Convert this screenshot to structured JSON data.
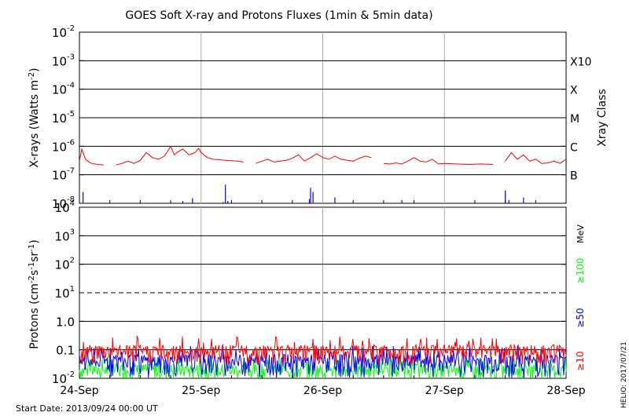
{
  "title": "GOES Soft X-ray and Protons Fluxes   (1min & 5min data)",
  "footer": {
    "start_date": "Start Date: 2013/09/24 00:00 UT",
    "credit": "HELIO: 2017/07/21"
  },
  "colors": {
    "xray_long": "#ff0000",
    "xray_short": "#0000ff",
    "proton_10": "#ff0000",
    "proton_50": "#0000ff",
    "proton_100": "#00ff00",
    "grid": "#000000",
    "day_line": "#aaaaaa"
  },
  "chart_data": [
    {
      "type": "line",
      "title": "GOES Soft X-ray and Protons Fluxes   (1min & 5min data)",
      "ylabel": "X-rays (Watts m^-2)",
      "y2label": "Xray Class",
      "yscale": "log",
      "ylim": [
        1e-08,
        0.01
      ],
      "xlim": [
        "2013-09-24",
        "2013-09-28"
      ],
      "x_ticks": [
        "24-Sep",
        "25-Sep",
        "26-Sep",
        "27-Sep",
        "28-Sep"
      ],
      "y_tick_exponents": [
        -8,
        -7,
        -6,
        -5,
        -4,
        -3,
        -2
      ],
      "xray_class_labels": [
        {
          "label": "B",
          "level": 1e-07
        },
        {
          "label": "C",
          "level": 1e-06
        },
        {
          "label": "M",
          "level": 1e-05
        },
        {
          "label": "X",
          "level": 0.0001
        },
        {
          "label": "X10",
          "level": 0.001
        }
      ],
      "grid_levels": [
        1e-07,
        1e-06,
        1e-05,
        0.0001,
        0.001
      ],
      "series": [
        {
          "color": "#ff0000",
          "x_days": [
            0.0,
            0.02,
            0.05,
            0.08,
            0.1,
            0.15,
            0.2,
            0.25,
            0.3,
            0.35,
            0.4,
            0.45,
            0.5,
            0.55,
            0.6,
            0.65,
            0.7,
            0.75,
            0.78,
            0.8,
            0.85,
            0.9,
            0.95,
            0.98,
            1.0,
            1.05,
            1.1,
            1.2,
            1.3,
            1.35,
            1.4,
            1.45,
            1.5,
            1.55,
            1.6,
            1.65,
            1.7,
            1.75,
            1.8,
            1.85,
            1.9,
            1.95,
            2.0,
            2.05,
            2.1,
            2.15,
            2.2,
            2.25,
            2.3,
            2.35,
            2.4,
            2.45,
            2.5,
            2.55,
            2.6,
            2.65,
            2.7,
            2.75,
            2.8,
            2.85,
            2.9,
            2.95,
            3.0,
            3.1,
            3.2,
            3.3,
            3.4,
            3.45,
            3.5,
            3.55,
            3.6,
            3.65,
            3.7,
            3.75,
            3.8,
            3.85,
            3.9,
            3.95,
            4.0
          ],
          "values": [
            3e-07,
            8e-07,
            3.5e-07,
            2.8e-07,
            2.5e-07,
            2.3e-07,
            2.2e-07,
            null,
            2.2e-07,
            2.5e-07,
            3e-07,
            2.5e-07,
            3.2e-07,
            6e-07,
            4e-07,
            3.5e-07,
            4.5e-07,
            1e-06,
            5e-07,
            6e-07,
            8e-07,
            5e-07,
            6e-07,
            8.5e-07,
            6e-07,
            4e-07,
            3.5e-07,
            3.2e-07,
            3e-07,
            2.8e-07,
            null,
            2.5e-07,
            3e-07,
            3.5e-07,
            2.8e-07,
            3e-07,
            3.2e-07,
            3.8e-07,
            5e-07,
            3e-07,
            4e-07,
            5.5e-07,
            4e-07,
            3.5e-07,
            4.5e-07,
            3.5e-07,
            3.2e-07,
            3e-07,
            3.8e-07,
            4.5e-07,
            4e-07,
            null,
            2.5e-07,
            2.4e-07,
            2.6e-07,
            2.4e-07,
            3e-07,
            4e-07,
            3e-07,
            2.8e-07,
            3.5e-07,
            2.4e-07,
            2.5e-07,
            2.4e-07,
            2.3e-07,
            2.4e-07,
            2.3e-07,
            null,
            3e-07,
            6e-07,
            3.5e-07,
            5e-07,
            3e-07,
            3.5e-07,
            2.5e-07,
            2.6e-07,
            3e-07,
            2.5e-07,
            3.5e-07
          ]
        },
        {
          "color": "#0000ff",
          "spike_days": [
            0.0,
            0.03,
            0.85,
            0.93,
            1.05,
            1.18,
            1.2,
            1.22,
            1.45,
            1.8,
            1.89,
            1.9,
            1.92,
            2.1,
            2.65,
            3.5,
            3.53,
            3.65
          ],
          "spike_values": [
            1e-08,
            2.5e-08,
            1.2e-08,
            1.5e-08,
            1e-08,
            1.1e-08,
            4.5e-08,
            1.2e-08,
            1e-08,
            1e-08,
            1.4e-08,
            3.5e-08,
            2.5e-08,
            1.6e-08,
            1.3e-08,
            2.8e-08,
            1.3e-08,
            1.6e-08
          ]
        }
      ]
    },
    {
      "type": "line",
      "ylabel": "Protons (cm^-2 s^-1 sr^-1)",
      "yscale": "log",
      "ylim": [
        0.01,
        10000
      ],
      "xlim": [
        "2013-09-24",
        "2013-09-28"
      ],
      "x_ticks": [
        "24-Sep",
        "25-Sep",
        "26-Sep",
        "27-Sep",
        "28-Sep"
      ],
      "y_ticks": [
        {
          "value": 0.01,
          "mantissa": "10",
          "exp": "-2"
        },
        {
          "value": 0.1,
          "mantissa": "10",
          "exp": "-1"
        },
        {
          "value": 1,
          "mantissa": "10",
          "exp": "0"
        },
        {
          "value": 10,
          "mantissa": "10",
          "exp": "1"
        },
        {
          "value": 100,
          "mantissa": "10",
          "exp": "2"
        },
        {
          "value": 1000,
          "mantissa": "10",
          "exp": "3"
        },
        {
          "value": 10000,
          "mantissa": "10",
          "exp": "4"
        }
      ],
      "y_tick_text": {
        "0.1": "0.1",
        "1": "1.0"
      },
      "grid_levels": [
        0.1,
        1,
        10,
        100,
        1000
      ],
      "dashed_level": 10,
      "unit": "MeV",
      "series": [
        {
          "name": "≥10",
          "color": "#ff0000",
          "typical": 0.09,
          "spread": 0.06
        },
        {
          "name": "≥50",
          "color": "#0000ff",
          "typical": 0.04,
          "spread": 0.03
        },
        {
          "name": "≥100",
          "color": "#00ff00",
          "typical": 0.02,
          "spread": 0.012
        }
      ]
    }
  ]
}
